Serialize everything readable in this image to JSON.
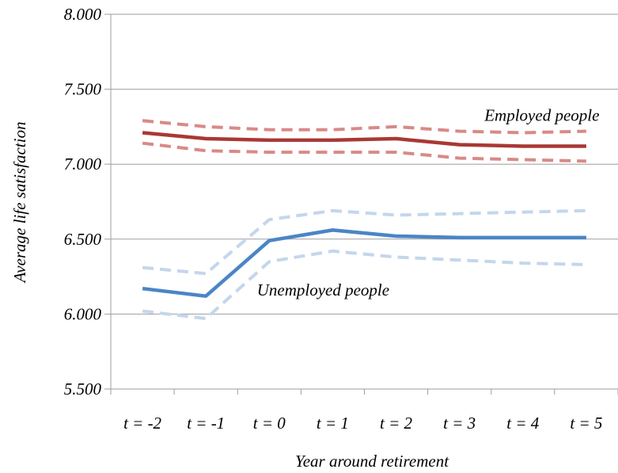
{
  "chart_data": {
    "type": "line",
    "xlabel": "Year  around retirement",
    "ylabel": "Average life satisfaction",
    "categories": [
      "t = -2",
      "t = -1",
      "t = 0",
      "t = 1",
      "t = 2",
      "t = 3",
      "t = 4",
      "t = 5"
    ],
    "ylim": [
      5.5,
      8.0
    ],
    "yticks": [
      "5.500",
      "6.000",
      "6.500",
      "7.000",
      "7.500",
      "8.000"
    ],
    "grid": true,
    "series": [
      {
        "key": "emp_upper",
        "style": "dashed",
        "color": "#d88a86",
        "values": [
          7.29,
          7.25,
          7.23,
          7.23,
          7.25,
          7.22,
          7.21,
          7.22
        ]
      },
      {
        "key": "emp_mean",
        "style": "solid",
        "color": "#a93834",
        "values": [
          7.21,
          7.17,
          7.16,
          7.16,
          7.17,
          7.13,
          7.12,
          7.12
        ]
      },
      {
        "key": "emp_lower",
        "style": "dashed",
        "color": "#d88a86",
        "values": [
          7.14,
          7.09,
          7.08,
          7.08,
          7.08,
          7.04,
          7.03,
          7.02
        ]
      },
      {
        "key": "unemp_upper",
        "style": "dashed",
        "color": "#c4d6ec",
        "values": [
          6.31,
          6.27,
          6.63,
          6.69,
          6.66,
          6.67,
          6.68,
          6.69
        ]
      },
      {
        "key": "unemp_mean",
        "style": "solid",
        "color": "#4a85c6",
        "values": [
          6.17,
          6.12,
          6.49,
          6.56,
          6.52,
          6.51,
          6.51,
          6.51
        ]
      },
      {
        "key": "unemp_lower",
        "style": "dashed",
        "color": "#c4d6ec",
        "values": [
          6.02,
          5.97,
          6.35,
          6.42,
          6.38,
          6.36,
          6.34,
          6.33
        ]
      }
    ],
    "annotations": [
      {
        "text": "Employed people",
        "x_at": 6.3,
        "y_at": 7.325
      },
      {
        "text": "Unemployed people",
        "x_at": 2.85,
        "y_at": 6.16
      }
    ]
  }
}
